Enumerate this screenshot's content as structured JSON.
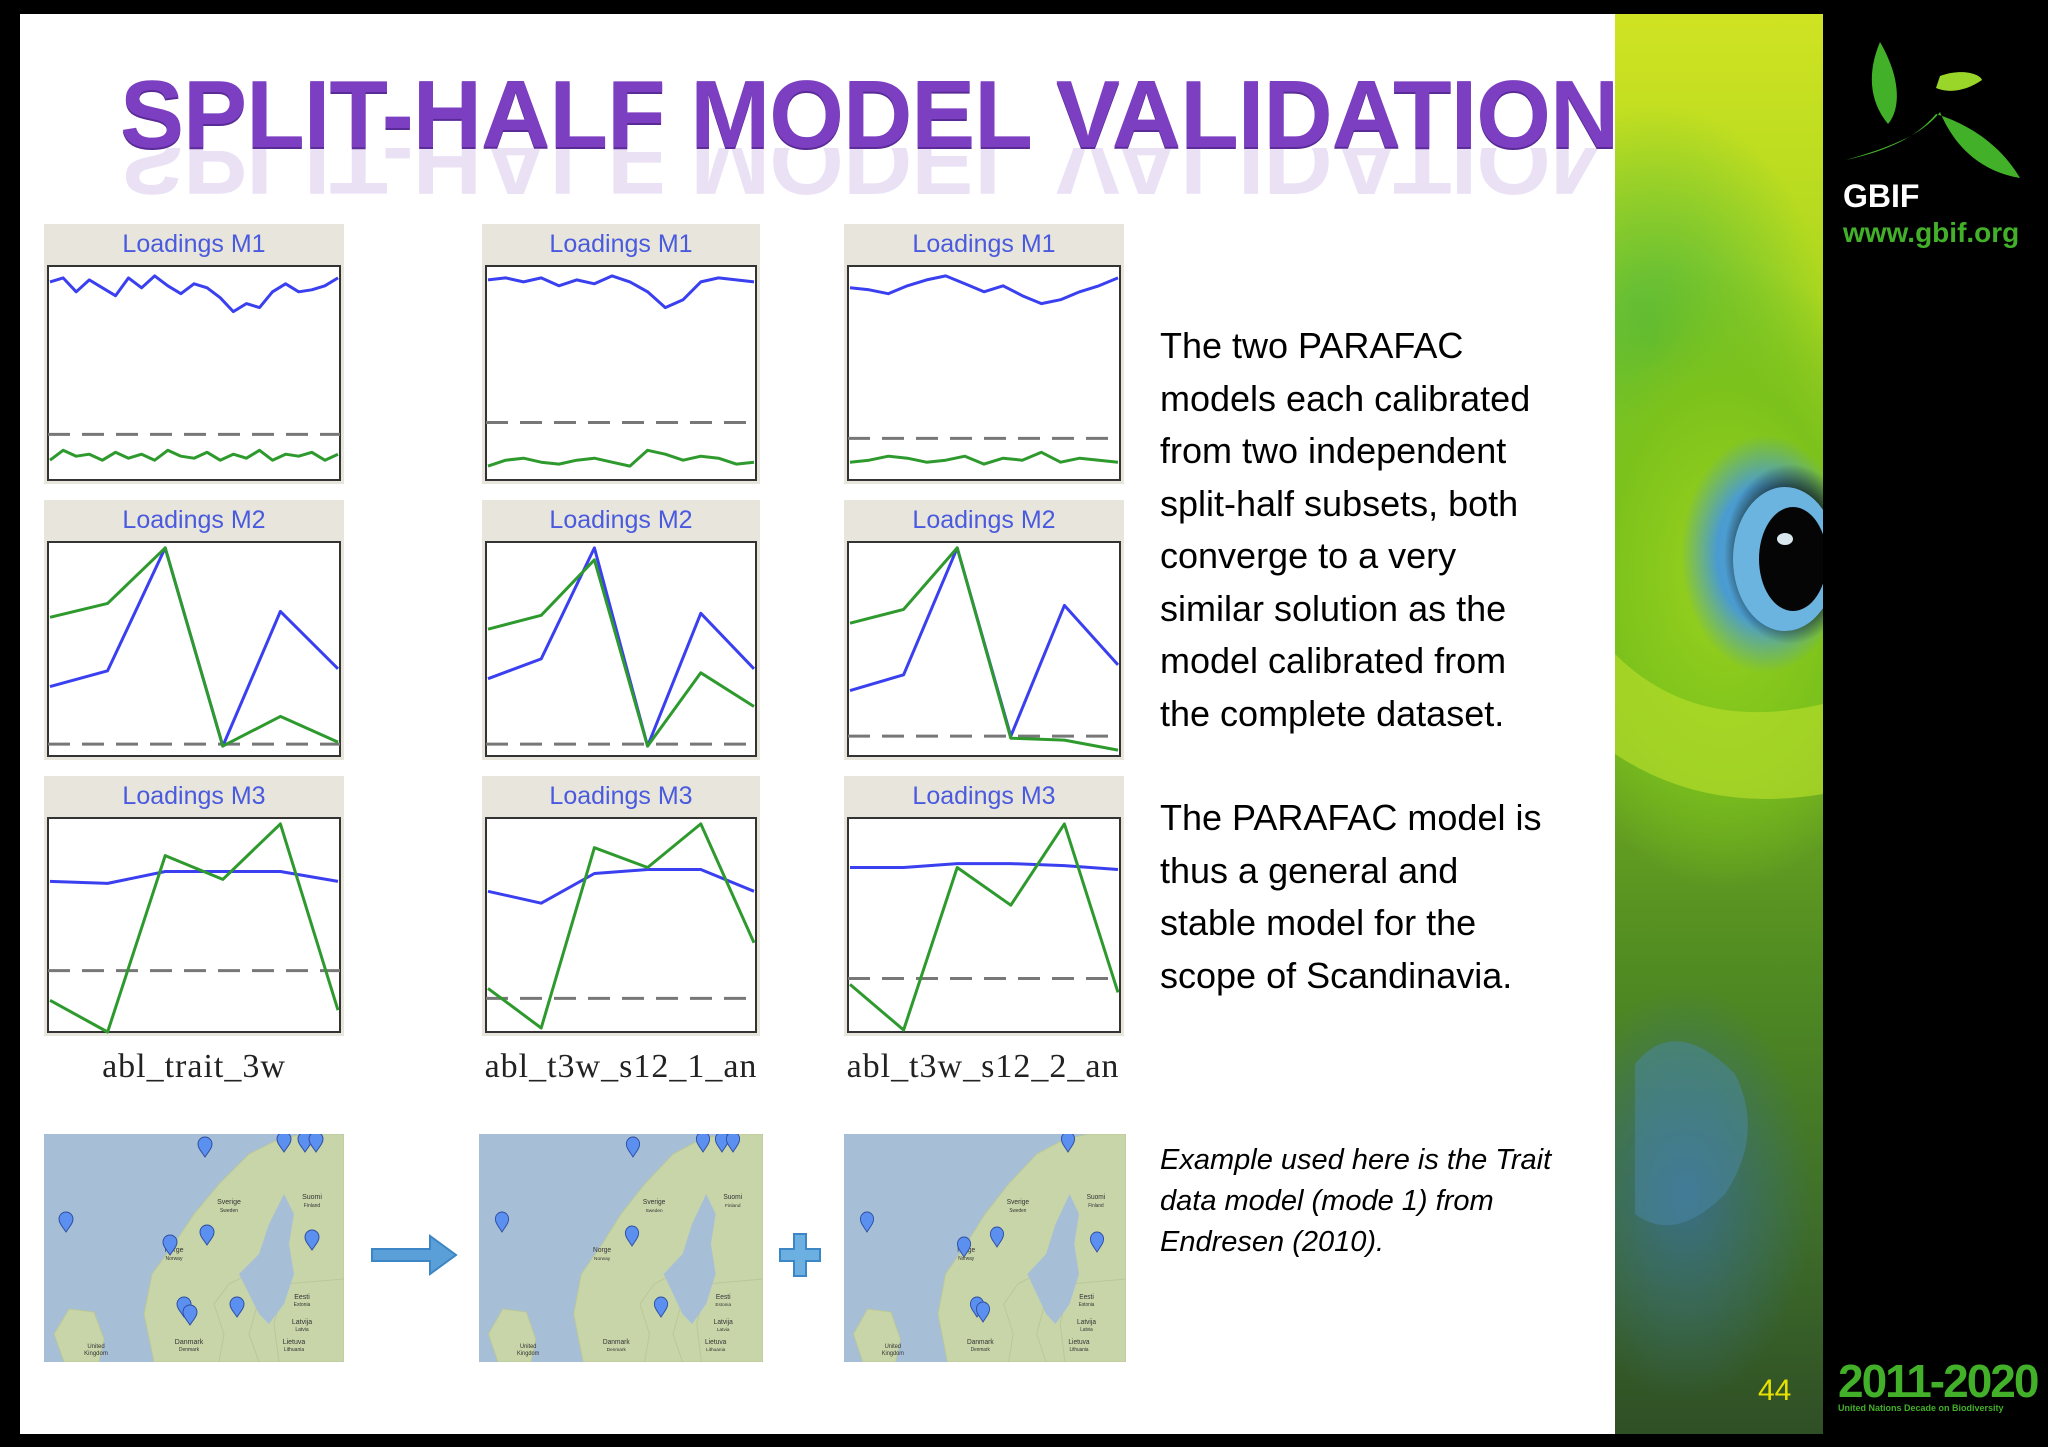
{
  "title": "SPLIT-HALF MODEL VALIDATION",
  "paragraphs": [
    [
      "The two PARAFAC",
      "models each calibrated",
      "from two independent",
      "split-half subsets, both",
      "converge to a very",
      "similar solution as the",
      "model calibrated from",
      "the complete dataset."
    ],
    [
      "The PARAFAC model is",
      "thus a general and",
      "stable model for the",
      "scope of  Scandinavia."
    ]
  ],
  "caption": [
    "Example used here is the Trait",
    "data model (mode 1) from",
    "Endresen (2010)."
  ],
  "panel_titles": [
    "Loadings M1",
    "Loadings M2",
    "Loadings M3"
  ],
  "model_names": [
    "abl_trait_3w",
    "abl_t3w_s12_1_an",
    "abl_t3w_s12_2_an"
  ],
  "map_labels": {
    "sverige": "Sverige",
    "sverige_sub": "Sweden",
    "suomi": "Suomi",
    "suomi_sub": "Finland",
    "norge": "Norge",
    "norge_sub": "Norway",
    "eesti": "Eesti",
    "eesti_sub": "Estonia",
    "latvija": "Latvija",
    "latvija_sub": "Latvia",
    "lietuva": "Lietuva",
    "lietuva_sub": "Lithuania",
    "danmark": "Danmark",
    "danmark_sub": "Denmark",
    "uk": "United",
    "uk_sub": "Kingdom"
  },
  "logo": {
    "name": "GBIF",
    "url": "www.gbif.org"
  },
  "page_number": "44",
  "decade": {
    "years": "2011-2020",
    "text": "United Nations Decade on Biodiversity"
  },
  "colors": {
    "title": "#7d3fc2",
    "blue_series": "#3a3ff0",
    "green_series": "#2e9a2e",
    "gbif_green": "#43b02a",
    "page_number": "#e8e000"
  },
  "chart_data": [
    {
      "type": "line",
      "model": "abl_trait_3w",
      "title": "Loadings M1",
      "grid": false,
      "series": [
        {
          "color": "blue",
          "values": [
            0.95,
            0.97,
            0.9,
            0.96,
            0.92,
            0.88,
            0.97,
            0.92,
            0.98,
            0.93,
            0.89,
            0.94,
            0.92,
            0.87,
            0.8,
            0.84,
            0.82,
            0.9,
            0.94,
            0.9,
            0.91,
            0.93,
            0.97
          ]
        },
        {
          "color": "green",
          "values": [
            0.05,
            0.1,
            0.07,
            0.08,
            0.05,
            0.09,
            0.06,
            0.08,
            0.05,
            0.1,
            0.07,
            0.06,
            0.09,
            0.05,
            0.08,
            0.06,
            0.1,
            0.05,
            0.08,
            0.07,
            0.09,
            0.05,
            0.08
          ]
        }
      ],
      "dashed": 0.18
    },
    {
      "type": "line",
      "model": "abl_t3w_s12_1_an",
      "title": "Loadings M1",
      "grid": false,
      "series": [
        {
          "color": "blue",
          "values": [
            0.96,
            0.97,
            0.95,
            0.97,
            0.93,
            0.96,
            0.94,
            0.98,
            0.95,
            0.9,
            0.82,
            0.86,
            0.95,
            0.97,
            0.96,
            0.95
          ]
        },
        {
          "color": "green",
          "values": [
            0.02,
            0.05,
            0.06,
            0.04,
            0.03,
            0.05,
            0.06,
            0.04,
            0.02,
            0.1,
            0.08,
            0.05,
            0.07,
            0.06,
            0.03,
            0.04
          ]
        }
      ],
      "dashed": 0.24
    },
    {
      "type": "line",
      "model": "abl_t3w_s12_2_an",
      "title": "Loadings M1",
      "grid": false,
      "series": [
        {
          "color": "blue",
          "values": [
            0.92,
            0.91,
            0.89,
            0.93,
            0.96,
            0.98,
            0.94,
            0.9,
            0.93,
            0.88,
            0.84,
            0.86,
            0.9,
            0.93,
            0.97
          ]
        },
        {
          "color": "green",
          "values": [
            0.04,
            0.05,
            0.07,
            0.06,
            0.04,
            0.05,
            0.07,
            0.03,
            0.06,
            0.05,
            0.09,
            0.04,
            0.06,
            0.05,
            0.04
          ]
        }
      ],
      "dashed": 0.16
    },
    {
      "type": "line",
      "model": "abl_trait_3w",
      "title": "Loadings M2",
      "grid": false,
      "series": [
        {
          "color": "blue",
          "values": [
            0.3,
            0.38,
            1.0,
            0.0,
            0.68,
            0.39
          ]
        },
        {
          "color": "green",
          "values": [
            0.65,
            0.72,
            1.0,
            0.0,
            0.15,
            0.02
          ]
        }
      ],
      "dashed": 0.01
    },
    {
      "type": "line",
      "model": "abl_t3w_s12_1_an",
      "title": "Loadings M2",
      "grid": false,
      "series": [
        {
          "color": "blue",
          "values": [
            0.34,
            0.44,
            1.0,
            0.0,
            0.67,
            0.39
          ]
        },
        {
          "color": "green",
          "values": [
            0.59,
            0.66,
            0.94,
            0.0,
            0.37,
            0.2
          ]
        }
      ],
      "dashed": 0.01
    },
    {
      "type": "line",
      "model": "abl_t3w_s12_2_an",
      "title": "Loadings M2",
      "grid": false,
      "series": [
        {
          "color": "blue",
          "values": [
            0.28,
            0.36,
            1.0,
            0.05,
            0.71,
            0.41
          ]
        },
        {
          "color": "green",
          "values": [
            0.62,
            0.69,
            1.0,
            0.04,
            0.03,
            -0.02
          ]
        }
      ],
      "dashed": 0.05
    },
    {
      "type": "line",
      "model": "abl_trait_3w",
      "title": "Loadings M3",
      "grid": false,
      "series": [
        {
          "color": "blue",
          "values": [
            0.71,
            0.7,
            0.76,
            0.76,
            0.76,
            0.71
          ]
        },
        {
          "color": "green",
          "values": [
            0.11,
            -0.05,
            0.84,
            0.72,
            1.0,
            0.06
          ]
        }
      ],
      "dashed": 0.26
    },
    {
      "type": "line",
      "model": "abl_t3w_s12_1_an",
      "title": "Loadings M3",
      "grid": false,
      "series": [
        {
          "color": "blue",
          "values": [
            0.66,
            0.6,
            0.75,
            0.77,
            0.77,
            0.66
          ]
        },
        {
          "color": "green",
          "values": [
            0.17,
            -0.03,
            0.88,
            0.78,
            1.0,
            0.4
          ]
        }
      ],
      "dashed": 0.12
    },
    {
      "type": "line",
      "model": "abl_t3w_s12_2_an",
      "title": "Loadings M3",
      "grid": false,
      "series": [
        {
          "color": "blue",
          "values": [
            0.78,
            0.78,
            0.8,
            0.8,
            0.79,
            0.77
          ]
        },
        {
          "color": "green",
          "values": [
            0.19,
            -0.04,
            0.78,
            0.59,
            1.0,
            0.15
          ]
        }
      ],
      "dashed": 0.22
    }
  ]
}
